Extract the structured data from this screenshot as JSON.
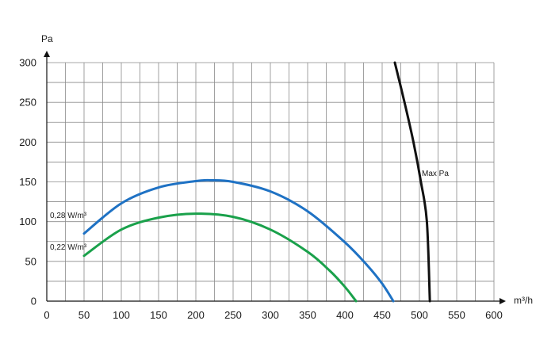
{
  "chart_data": {
    "type": "line",
    "xlabel": "m³/h",
    "ylabel": "Pa",
    "xlim": [
      0,
      600
    ],
    "ylim": [
      0,
      300
    ],
    "x_ticks": [
      "0",
      "50",
      "100",
      "150",
      "200",
      "250",
      "300",
      "350",
      "400",
      "450",
      "500",
      "550",
      "600"
    ],
    "y_ticks": [
      "0",
      "50",
      "100",
      "150",
      "200",
      "250",
      "300"
    ],
    "grid": true,
    "series": [
      {
        "name": "0,28 W/m³",
        "color": "#1f72c4",
        "x": [
          50,
          100,
          150,
          200,
          220,
          250,
          300,
          350,
          400,
          430,
          450,
          465
        ],
        "y": [
          85,
          123,
          143,
          151,
          152,
          150,
          138,
          113,
          74,
          45,
          22,
          0
        ]
      },
      {
        "name": "0,22 W/m³",
        "color": "#1aa14b",
        "x": [
          50,
          100,
          150,
          200,
          250,
          300,
          350,
          380,
          400,
          415
        ],
        "y": [
          57,
          90,
          105,
          110,
          106,
          90,
          62,
          38,
          18,
          0
        ]
      },
      {
        "name": "Max Pa",
        "color": "#111111",
        "x": [
          467,
          480,
          492,
          502,
          510,
          514
        ],
        "y": [
          300,
          250,
          200,
          150,
          100,
          0
        ]
      }
    ]
  }
}
